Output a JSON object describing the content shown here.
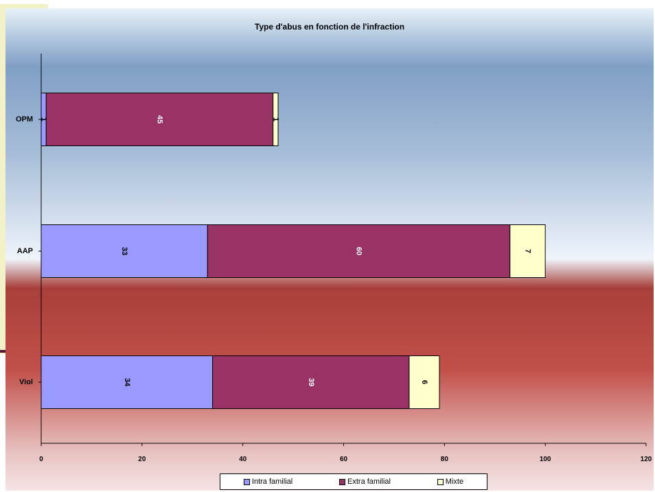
{
  "chart_data": {
    "type": "bar",
    "orientation": "horizontal",
    "stacked": true,
    "title": "Type d'abus en fonction de l'infraction",
    "categories": [
      "OPM",
      "AAP",
      "Viol"
    ],
    "series": [
      {
        "name": "Intra familial",
        "values": [
          1,
          33,
          34
        ],
        "color": "#9999ff"
      },
      {
        "name": "Extra familial",
        "values": [
          45,
          60,
          39
        ],
        "color": "#993366"
      },
      {
        "name": "Mixte",
        "values": [
          1,
          7,
          6
        ],
        "color": "#ffffcc"
      }
    ],
    "xlim": [
      0,
      120
    ],
    "xticks": [
      0,
      20,
      40,
      60,
      80,
      100,
      120
    ],
    "grid": false,
    "legend_position": "bottom"
  }
}
